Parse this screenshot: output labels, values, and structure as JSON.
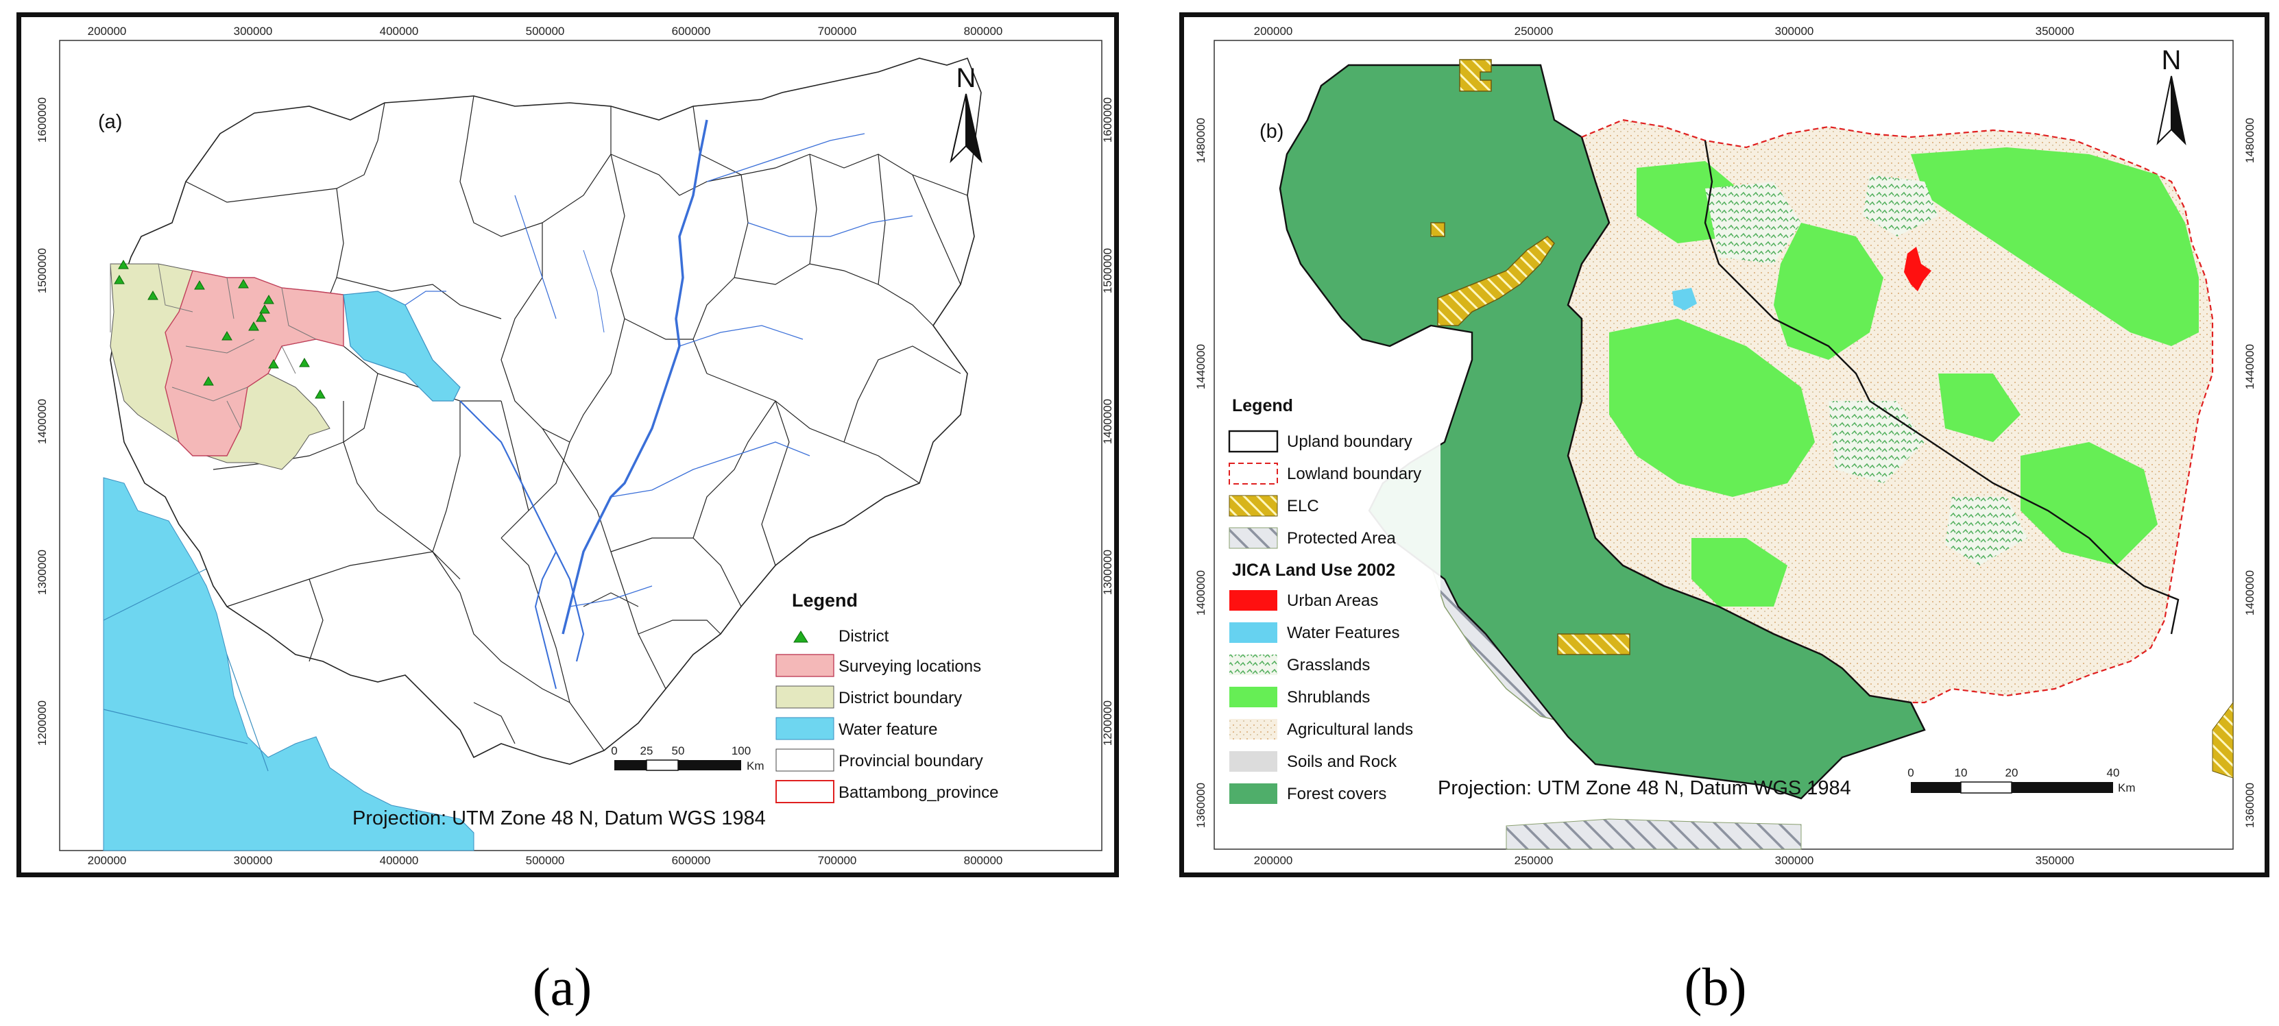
{
  "panel_a": {
    "tag": "(a)",
    "north": "N",
    "x_ticks": [
      "200000",
      "300000",
      "400000",
      "500000",
      "600000",
      "700000",
      "800000"
    ],
    "y_ticks": [
      "1600000",
      "1500000",
      "1400000",
      "1300000",
      "1200000"
    ],
    "legend": {
      "title": "Legend",
      "items": [
        {
          "label": "District",
          "symbol": "triangle",
          "color": "#1fae1f"
        },
        {
          "label": "Surveying locations",
          "symbol": "fill",
          "color": "#f4b8b8"
        },
        {
          "label": "District boundary",
          "symbol": "fill",
          "color": "#e4e8bf"
        },
        {
          "label": "Water feature",
          "symbol": "fill",
          "color": "#6ed6f0"
        },
        {
          "label": "Provincial boundary",
          "symbol": "outline",
          "color": "#444444"
        },
        {
          "label": "Battambong_province",
          "symbol": "outline",
          "color": "#e02020"
        }
      ]
    },
    "scale": {
      "labels": [
        "0",
        "25",
        "50",
        "100"
      ],
      "unit": "Km"
    },
    "projection": "Projection: UTM Zone 48 N, Datum WGS 1984"
  },
  "panel_b": {
    "tag": "(b)",
    "north": "N",
    "x_ticks": [
      "200000",
      "250000",
      "300000",
      "350000"
    ],
    "y_ticks": [
      "1480000",
      "1440000",
      "1400000",
      "1360000"
    ],
    "legend": {
      "title": "Legend",
      "items": [
        {
          "label": "Upland boundary",
          "symbol": "outline",
          "color": "#111111"
        },
        {
          "label": "Lowland boundary",
          "symbol": "dashed",
          "color": "#e02020"
        },
        {
          "label": "ELC",
          "symbol": "hatch-yellow",
          "color": "#d8b41a"
        },
        {
          "label": "Protected Area",
          "symbol": "hatch-grey",
          "color": "#9aa0aa"
        }
      ],
      "subtitle": "JICA Land Use 2002",
      "landuse": [
        {
          "label": "Urban Areas",
          "color": "#ff1010"
        },
        {
          "label": "Water Features",
          "color": "#66d2f0"
        },
        {
          "label": "Grasslands",
          "color": "#5ab85a"
        },
        {
          "label": "Shrublands",
          "color": "#66ee55"
        },
        {
          "label": "Agricultural lands",
          "color": "#f5ead8"
        },
        {
          "label": "Soils and Rock",
          "color": "#dcdcdc"
        },
        {
          "label": "Forest covers",
          "color": "#4fae6a"
        }
      ]
    },
    "scale": {
      "labels": [
        "0",
        "10",
        "20",
        "40"
      ],
      "unit": "Km"
    },
    "projection": "Projection: UTM Zone 48 N, Datum WGS 1984"
  },
  "captions": {
    "a": "(a)",
    "b": "(b)"
  }
}
